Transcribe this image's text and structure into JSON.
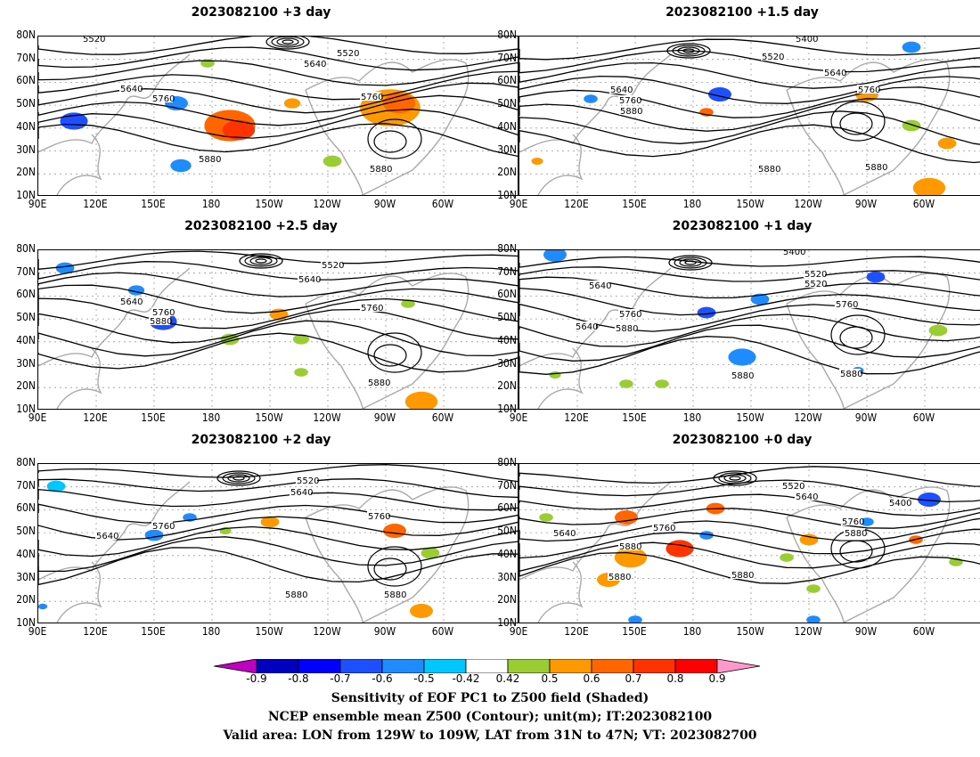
{
  "panels": [
    {
      "title": "2023082100 +3 day",
      "contours": [
        "5520",
        "5520",
        "5640",
        "5640",
        "5760",
        "5760",
        "5880",
        "5880"
      ]
    },
    {
      "title": "2023082100 +1.5 day",
      "contours": [
        "5400",
        "5520",
        "5640",
        "5640",
        "5760",
        "5760",
        "5880",
        "5880",
        "5880"
      ]
    },
    {
      "title": "2023082100 +2.5 day",
      "contours": [
        "5520",
        "5640",
        "5640",
        "5760",
        "5880",
        "5760",
        "5880"
      ]
    },
    {
      "title": "2023082100 +1 day",
      "contours": [
        "5400",
        "5520",
        "5640",
        "5520",
        "5640",
        "5760",
        "5760",
        "5880",
        "5640",
        "5880",
        "5880"
      ]
    },
    {
      "title": "2023082100 +2 day",
      "contours": [
        "5520",
        "5640",
        "5760",
        "5640",
        "5760",
        "5880",
        "5880"
      ]
    },
    {
      "title": "2023082100 +0 day",
      "contours": [
        "5520",
        "5640",
        "5400",
        "5760",
        "5640",
        "5760",
        "5880",
        "5880",
        "5880",
        "5880"
      ]
    }
  ],
  "lat_labels": [
    "80N",
    "70N",
    "60N",
    "50N",
    "40N",
    "30N",
    "20N",
    "10N"
  ],
  "lon_labels": [
    "90E",
    "120E",
    "150E",
    "180",
    "150W",
    "120W",
    "90W",
    "60W"
  ],
  "colorbar": {
    "labels": [
      "-0.9",
      "-0.8",
      "-0.7",
      "-0.6",
      "-0.5",
      "-0.42",
      "0.42",
      "0.5",
      "0.6",
      "0.7",
      "0.8",
      "0.9"
    ],
    "colors": [
      "#c000c0",
      "#0000c0",
      "#0000ff",
      "#1e50ff",
      "#1e8cff",
      "#00c8ff",
      "#ffffff",
      "#9acd32",
      "#ff9900",
      "#ff6600",
      "#ff3300",
      "#ff0000",
      "#ff99cc"
    ]
  },
  "caption": [
    "Sensitivity of EOF PC1 to Z500 field (Shaded)",
    "NCEP ensemble mean Z500 (Contour); unit(m); IT:2023082100",
    "Valid area: LON from 129W to 109W, LAT from 31N to 47N; VT: 2023082700"
  ]
}
